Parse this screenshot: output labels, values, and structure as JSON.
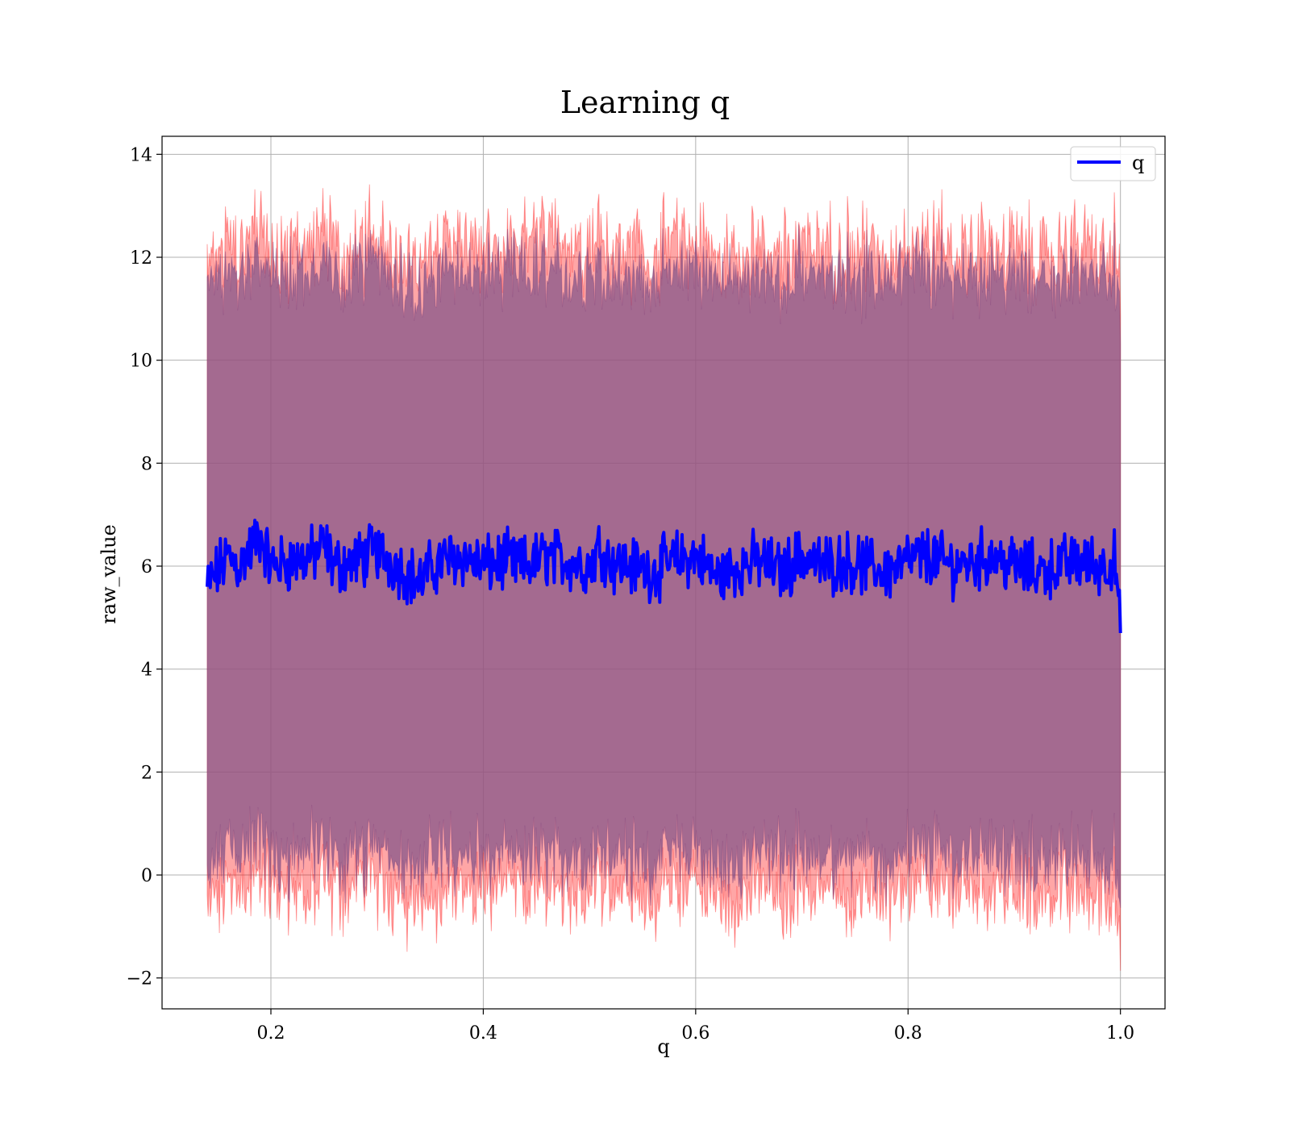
{
  "chart_data": {
    "type": "line",
    "title": "Learning q",
    "xlabel": "q",
    "ylabel": "raw_value",
    "xlim": [
      0.0975,
      1.042
    ],
    "ylim": [
      -2.6,
      14.35
    ],
    "x_ticks": [
      0.2,
      0.4,
      0.6,
      0.8,
      1.0
    ],
    "x_tick_labels": [
      "0.2",
      "0.4",
      "0.6",
      "0.8",
      "1.0"
    ],
    "y_ticks": [
      -2,
      0,
      2,
      4,
      6,
      8,
      10,
      12,
      14
    ],
    "y_tick_labels": [
      "−2",
      "0",
      "2",
      "4",
      "6",
      "8",
      "10",
      "12",
      "14"
    ],
    "grid": true,
    "legend": {
      "position": "top-right",
      "entries": [
        "q"
      ]
    },
    "series": [
      {
        "name": "q",
        "color": "#0000ff",
        "x": [
          0.14,
          0.15,
          0.16,
          0.17,
          0.18,
          0.19,
          0.2,
          0.22,
          0.24,
          0.25,
          0.26,
          0.28,
          0.3,
          0.32,
          0.34,
          0.36,
          0.38,
          0.4,
          0.42,
          0.44,
          0.46,
          0.48,
          0.5,
          0.51,
          0.52,
          0.54,
          0.56,
          0.58,
          0.6,
          0.62,
          0.64,
          0.66,
          0.68,
          0.7,
          0.72,
          0.74,
          0.76,
          0.78,
          0.8,
          0.82,
          0.84,
          0.86,
          0.88,
          0.9,
          0.92,
          0.94,
          0.96,
          0.98,
          0.995,
          1.0
        ],
        "values": [
          5.6,
          5.9,
          6.2,
          6.0,
          6.3,
          6.6,
          6.0,
          6.1,
          6.2,
          6.4,
          6.0,
          6.1,
          6.3,
          6.0,
          5.7,
          6.1,
          6.2,
          6.0,
          6.1,
          6.0,
          6.2,
          6.1,
          6.0,
          6.4,
          6.1,
          6.0,
          5.9,
          6.1,
          6.2,
          5.8,
          6.0,
          6.1,
          5.9,
          6.2,
          6.0,
          6.1,
          6.0,
          5.9,
          6.1,
          6.2,
          6.0,
          6.1,
          6.2,
          6.0,
          5.9,
          6.0,
          6.1,
          6.0,
          6.1,
          4.7
        ]
      }
    ],
    "bands": [
      {
        "description": "inner band",
        "fill": "#8b5a8b",
        "lower_center": 0.4,
        "upper_center": 11.7
      },
      {
        "description": "outer band",
        "fill": "#ff0000",
        "lower_center": -0.3,
        "upper_center": 12.2
      }
    ]
  }
}
